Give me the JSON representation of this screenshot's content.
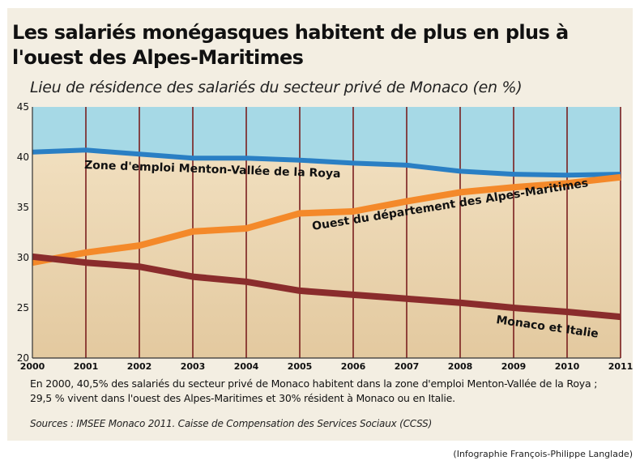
{
  "header": {
    "title": "Les salariés monégasques habitent de plus en plus à l'ouest des Alpes-Maritimes",
    "subtitle": "Lieu de résidence des salariés du secteur privé de Monaco (en %)"
  },
  "footer": {
    "note": "En 2000, 40,5% des salariés du secteur privé de Monaco habitent dans la zone d'emploi Menton-Vallée de la Roya ; 29,5 % vivent dans l'ouest des Alpes-Maritimes et 30% résident à Monaco ou en Italie.",
    "source": "Sources : IMSEE Monaco 2011. Caisse de Compensation des Services Sociaux (CCSS)",
    "credit": "(Infographie François-Philippe Langlade)"
  },
  "colors": {
    "sky": "#a6d9e6",
    "beige": "#f1dfbf",
    "beige_dark": "#e3c99f",
    "menton": "#2a7fc4",
    "ouest": "#f4892a",
    "monaco": "#8a2c2c",
    "gridline": "#7a1f1f",
    "card": "#f3eee2"
  },
  "chart_data": {
    "type": "line",
    "x": [
      2000,
      2001,
      2002,
      2003,
      2004,
      2005,
      2006,
      2007,
      2008,
      2009,
      2010,
      2011
    ],
    "x_ticks": [
      "2000",
      "2001",
      "2002",
      "2003",
      "2004",
      "2005",
      "2006",
      "2007",
      "2008",
      "2009",
      "2010",
      "2011"
    ],
    "y_ticks": [
      "20",
      "25",
      "30",
      "35",
      "40",
      "45"
    ],
    "ylim": [
      20,
      45
    ],
    "xlim": [
      2000,
      2011
    ],
    "grid": "vertical",
    "series": [
      {
        "name": "Zone d'emploi Menton-Vallée de la Roya",
        "color": "#2a7fc4",
        "values": [
          40.5,
          40.7,
          40.3,
          39.9,
          39.9,
          39.7,
          39.4,
          39.2,
          38.6,
          38.3,
          38.2,
          38.3
        ]
      },
      {
        "name": "Ouest du département des Alpes-Maritimes",
        "color": "#f4892a",
        "values": [
          29.5,
          30.5,
          31.2,
          32.6,
          32.9,
          34.4,
          34.6,
          35.6,
          36.5,
          37.0,
          37.4,
          38.0
        ]
      },
      {
        "name": "Monaco et Italie",
        "color": "#8a2c2c",
        "values": [
          30.1,
          29.5,
          29.1,
          28.1,
          27.6,
          26.7,
          26.3,
          25.9,
          25.5,
          25.0,
          24.6,
          24.1
        ]
      }
    ]
  }
}
